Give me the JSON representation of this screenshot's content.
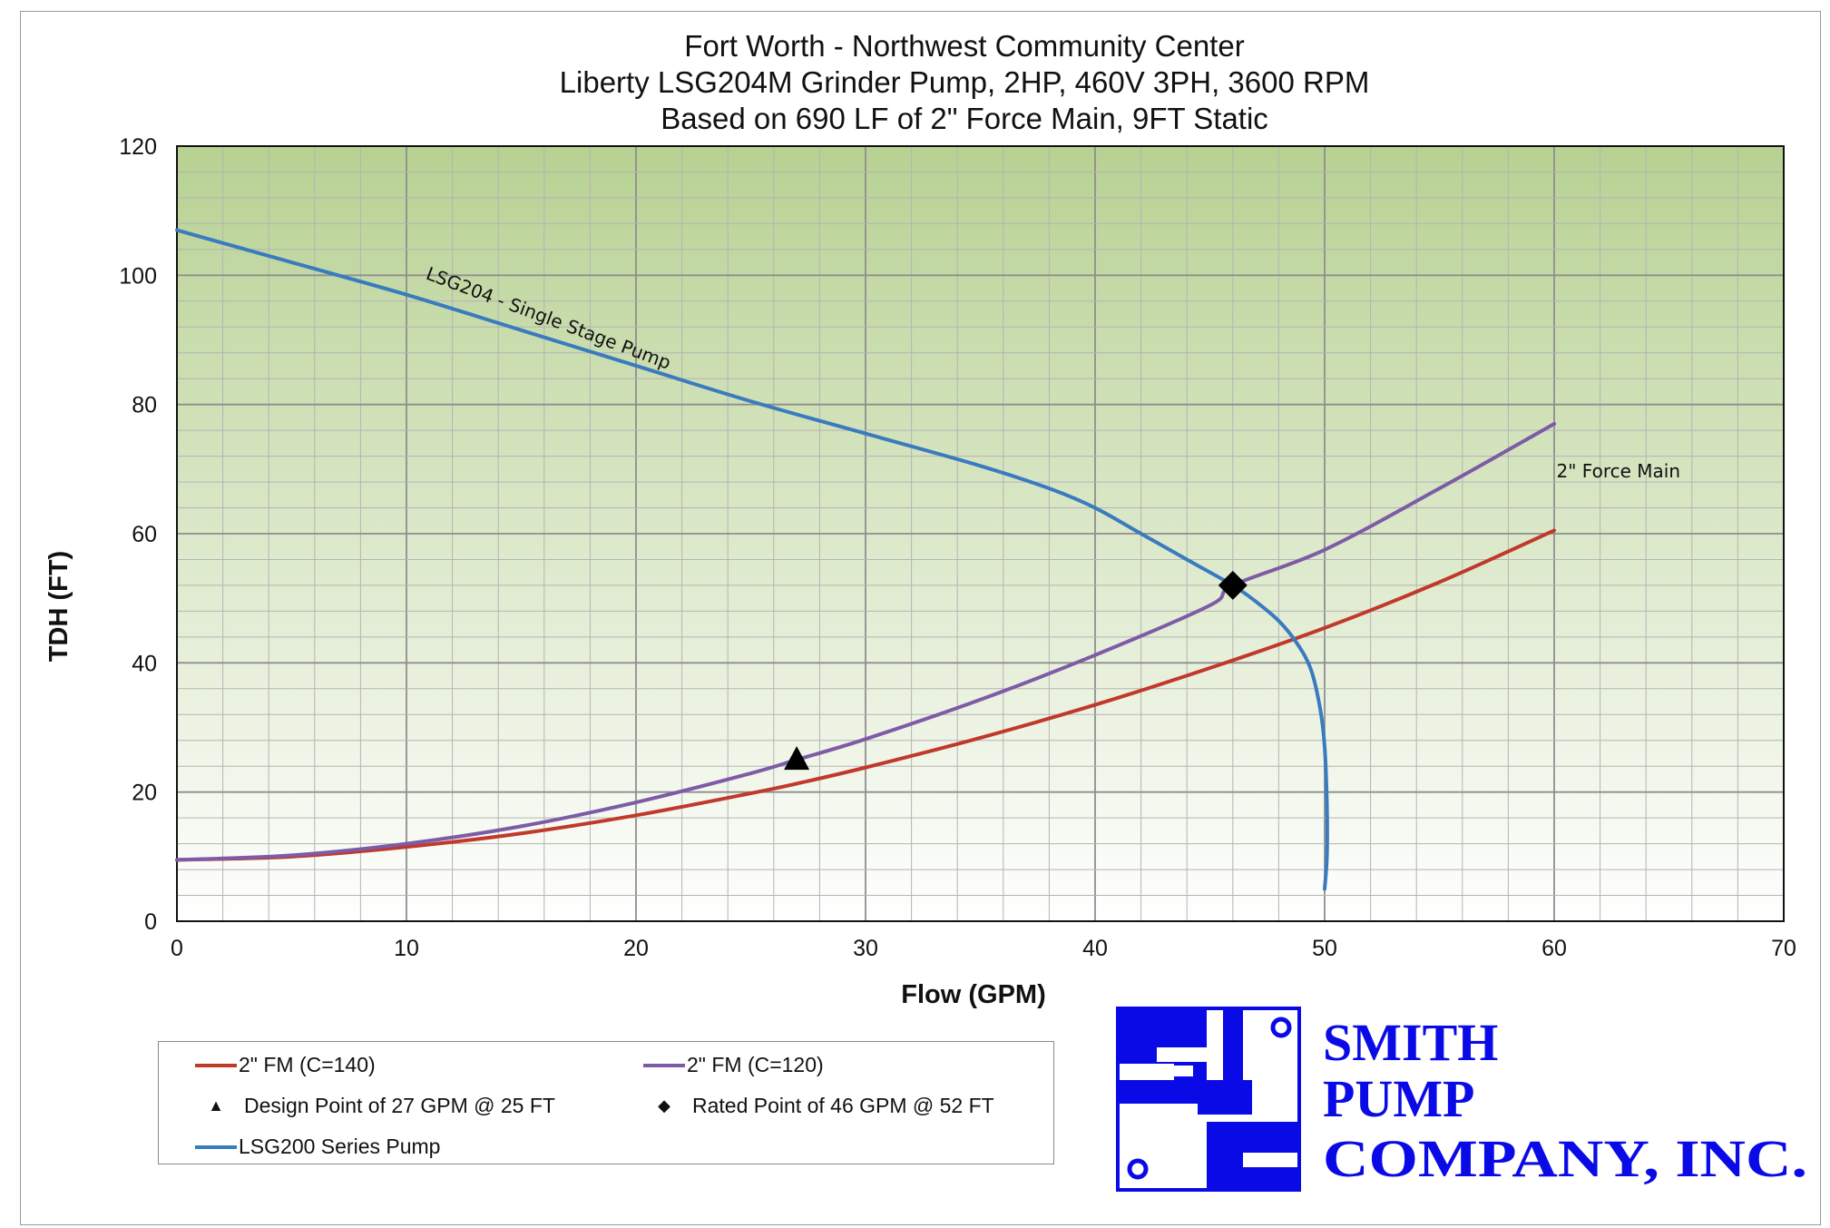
{
  "chart_data": {
    "type": "line",
    "title": [
      "Fort Worth - Northwest Community Center",
      "Liberty LSG204M Grinder Pump, 2HP, 460V 3PH, 3600 RPM",
      "Based on 690 LF of 2\" Force Main, 9FT Static"
    ],
    "xlabel": "Flow (GPM)",
    "ylabel": "TDH (FT)",
    "xlim": [
      0,
      70
    ],
    "ylim": [
      0,
      120
    ],
    "xticks": [
      0,
      10,
      20,
      30,
      40,
      50,
      60,
      70
    ],
    "yticks": [
      0,
      20,
      40,
      60,
      80,
      100,
      120
    ],
    "grid": true,
    "series": [
      {
        "name": "2\" FM (C=140)",
        "color": "#c0392b",
        "x": [
          0,
          5,
          10,
          15,
          20,
          25,
          27,
          30,
          35,
          40,
          45,
          50,
          55,
          60
        ],
        "y": [
          9.5,
          10.0,
          11.5,
          13.6,
          16.4,
          19.8,
          21.3,
          23.8,
          28.4,
          33.5,
          39.2,
          45.4,
          52.5,
          60.5
        ]
      },
      {
        "name": "2\" FM (C=120)",
        "color": "#7d5ba6",
        "x": [
          0,
          5,
          10,
          15,
          20,
          25,
          27,
          30,
          35,
          40,
          45,
          46,
          50,
          55,
          60
        ],
        "y": [
          9.5,
          10.2,
          12.0,
          14.7,
          18.4,
          22.9,
          25.0,
          28.2,
          34.3,
          41.2,
          48.9,
          52.0,
          57.5,
          67.0,
          77.0
        ]
      },
      {
        "name": "LSG200 Series Pump",
        "color": "#3a7bbf",
        "x": [
          0,
          5,
          10,
          15,
          20,
          25,
          30,
          35,
          38,
          40,
          42,
          44,
          46,
          47,
          48,
          48.8,
          49.4,
          49.8,
          50,
          50.1,
          50.1,
          50
        ],
        "y": [
          107,
          102,
          97,
          91.5,
          86,
          80.5,
          75.5,
          70.5,
          67,
          64,
          60,
          56,
          52,
          49.5,
          46.5,
          43,
          39,
          33,
          27,
          18,
          10,
          5
        ]
      }
    ],
    "points": [
      {
        "name": "Design Point of 27 GPM @ 25 FT",
        "x": 27,
        "y": 25,
        "marker": "triangle"
      },
      {
        "name": "Rated Point of 46 GPM @ 52 FT",
        "x": 46,
        "y": 52,
        "marker": "diamond"
      }
    ],
    "annotations": [
      {
        "text": "LSG204 - Single Stage Pump",
        "x": 10.8,
        "y": 99.5
      },
      {
        "text": "2\" Force Main",
        "x": 60.1,
        "y": 68.7
      }
    ],
    "plot_background": [
      "#ffffff",
      "#b7d192"
    ],
    "legend_position": "bottom-left"
  },
  "legend": {
    "items": [
      {
        "label": "2\" FM (C=140)",
        "color": "#c0392b"
      },
      {
        "label": "2\" FM (C=120)",
        "color": "#7d5ba6"
      },
      {
        "label": "Design Point of 27 GPM @ 25 FT",
        "marker": "▲"
      },
      {
        "label": "Rated Point of 46 GPM @ 52 FT",
        "marker": "◆"
      },
      {
        "label": "LSG200 Series Pump",
        "color": "#3a7bbf"
      }
    ]
  },
  "logo": {
    "line1": "SMITH",
    "line2": "PUMP",
    "line3": "COMPANY, INC.",
    "color": "#0a0ae6"
  }
}
